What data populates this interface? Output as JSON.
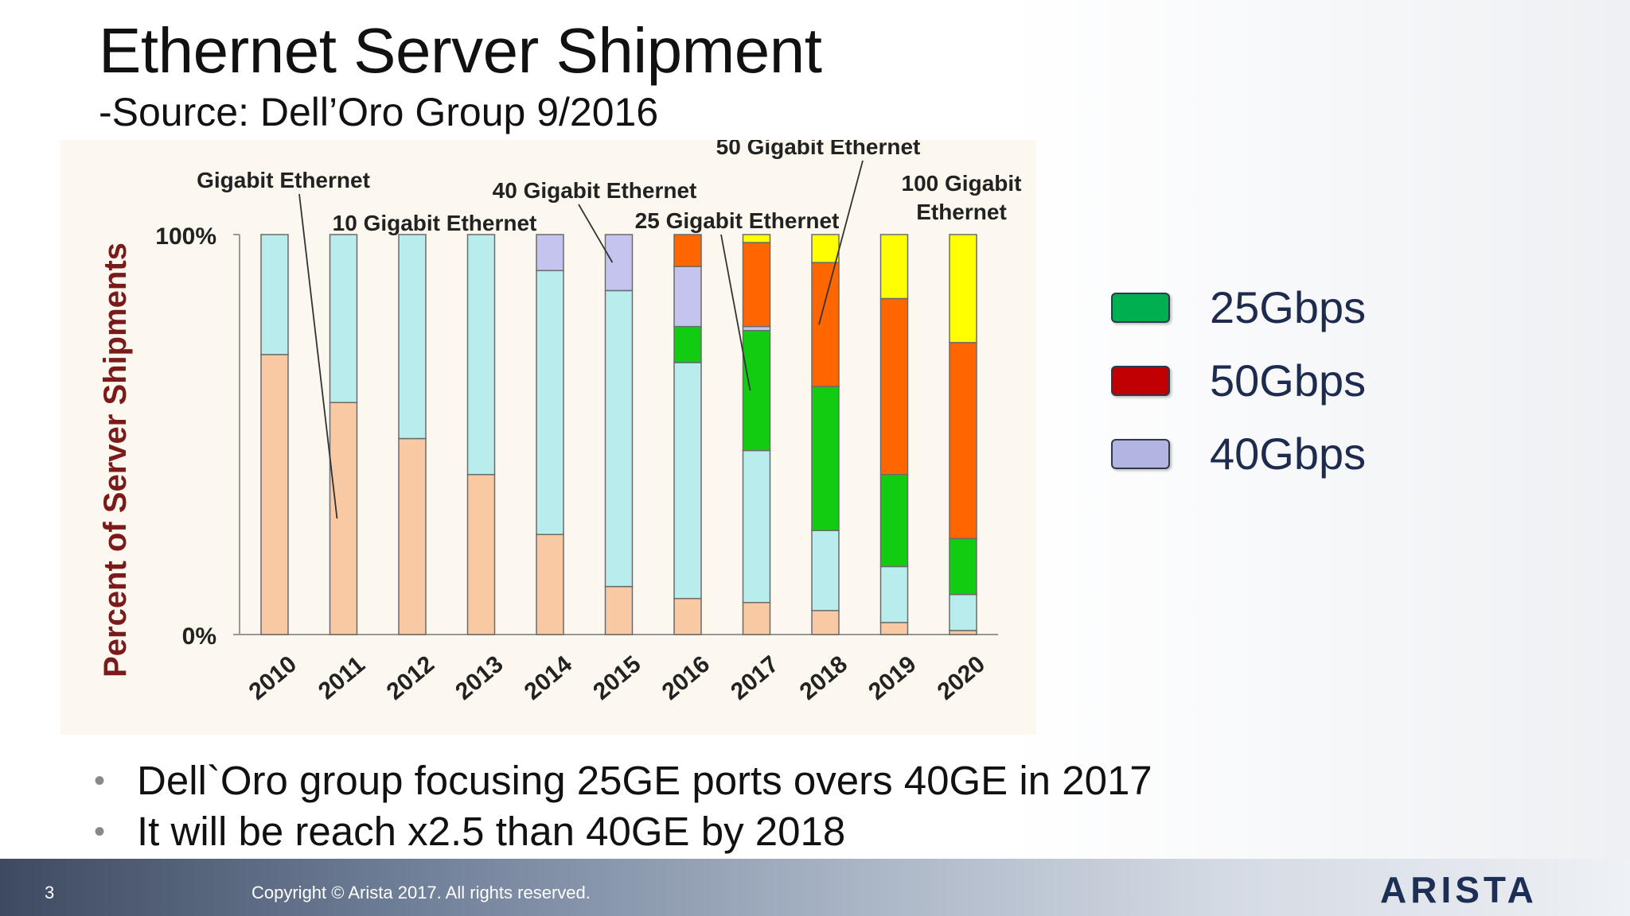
{
  "slide": {
    "title": "Ethernet Server Shipment",
    "subtitle": "-Source: Dell’Oro Group 9/2016",
    "bullets": [
      "Dell`Oro group focusing 25GE ports overs 40GE in 2017",
      "It will be reach x2.5 than 40GE by 2018"
    ],
    "legend": [
      {
        "label": "25Gbps",
        "color": "#00b050"
      },
      {
        "label": "50Gbps",
        "color": "#c00000"
      },
      {
        "label": "40Gbps",
        "color": "#b4b4e0"
      }
    ],
    "footer": {
      "page_number": "3",
      "copyright": "Copyright © Arista 2017. All rights reserved.",
      "logo": "ARISTA"
    }
  },
  "chart_data": {
    "type": "bar",
    "stacked": true,
    "ylabel": "Percent of Server Shipments",
    "ytick_labels": [
      "0%",
      "100%"
    ],
    "ylim": [
      0,
      100
    ],
    "categories": [
      "2010",
      "2011",
      "2012",
      "2013",
      "2014",
      "2015",
      "2016",
      "2017",
      "2018",
      "2019",
      "2020"
    ],
    "series": [
      {
        "name": "Gigabit Ethernet",
        "color": "#f8c9a3",
        "values": [
          70,
          58,
          49,
          40,
          25,
          12,
          9,
          8,
          6,
          3,
          1
        ]
      },
      {
        "name": "10 Gigabit Ethernet",
        "color": "#b9ecec",
        "values": [
          30,
          42,
          51,
          60,
          66,
          74,
          59,
          38,
          20,
          14,
          9
        ]
      },
      {
        "name": "25 Gigabit Ethernet",
        "color": "#11cc11",
        "values": [
          0,
          0,
          0,
          0,
          0,
          0,
          9,
          30,
          36,
          23,
          14
        ]
      },
      {
        "name": "40 Gigabit Ethernet",
        "color": "#c4c4ef",
        "values": [
          0,
          0,
          0,
          0,
          9,
          14,
          15,
          1,
          0,
          0,
          0
        ]
      },
      {
        "name": "50 Gigabit Ethernet",
        "color": "#ff6600",
        "values": [
          0,
          0,
          0,
          0,
          0,
          0,
          8,
          21,
          31,
          44,
          49
        ]
      },
      {
        "name": "100 Gigabit Ethernet",
        "color": "#ffff00",
        "values": [
          0,
          0,
          0,
          0,
          0,
          0,
          0,
          2,
          7,
          16,
          27
        ]
      }
    ],
    "annotations": [
      {
        "text": "Gigabit Ethernet",
        "series": "Gigabit Ethernet",
        "category": "2011"
      },
      {
        "text": "10 Gigabit Ethernet",
        "series": "10 Gigabit Ethernet",
        "category": "2012"
      },
      {
        "text": "40 Gigabit Ethernet",
        "series": "40 Gigabit Ethernet",
        "category": "2015"
      },
      {
        "text": "25 Gigabit Ethernet",
        "series": "25 Gigabit Ethernet",
        "category": "2017"
      },
      {
        "text": "50 Gigabit Ethernet",
        "series": "50 Gigabit Ethernet",
        "category": "2018"
      },
      {
        "text": "100 Gigabit Ethernet",
        "series": "100 Gigabit Ethernet",
        "category": "2020"
      }
    ],
    "grid": false,
    "legend": "none"
  }
}
